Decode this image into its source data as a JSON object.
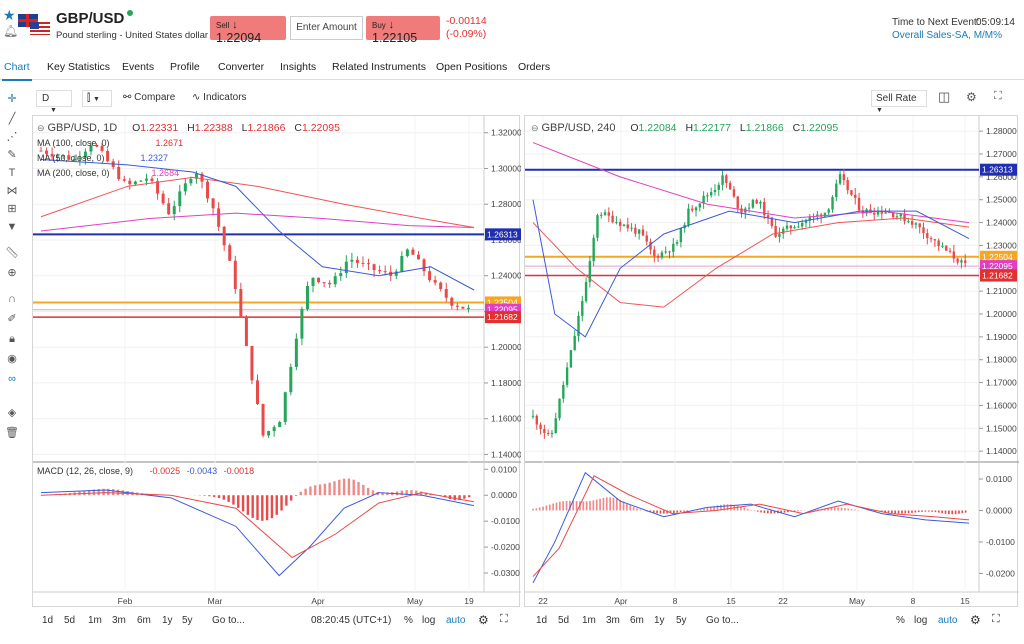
{
  "header": {
    "symbol": "GBP/USD",
    "subtitle": "Pound sterling - United States dollar",
    "sell_label": "Sell",
    "sell_price": "1.22094",
    "amount_placeholder": "Enter Amount",
    "buy_label": "Buy",
    "buy_price": "1.22105",
    "change": "-0.00114",
    "change_pct": "(-0.09%)",
    "next_event_label": "Time to Next Event:",
    "next_event_time": "05:09:14",
    "event_name": "Overall Sales-SA, M/M%"
  },
  "tabs": [
    "Chart",
    "Key Statistics",
    "Events",
    "Profile",
    "Converter",
    "Insights",
    "Related Instruments",
    "Open Positions",
    "Orders"
  ],
  "toolbar": {
    "interval": "D",
    "compare": "Compare",
    "indicators": "Indicators",
    "sell_rate": "Sell Rate"
  },
  "left_chart": {
    "title": "GBP/USD, 1D",
    "o": "1.22331",
    "h": "1.22388",
    "l": "1.21866",
    "c": "1.22095",
    "ma100": "MA (100, close, 0)",
    "ma100_val": "1.2671",
    "ma50": "MA (50, close, 0)",
    "ma50_val": "1.2327",
    "ma200": "MA (200, close, 0)",
    "ma200_val": "1.2684",
    "macd_label": "MACD (12, 26, close, 9)",
    "macd_v1": "-0.0025",
    "macd_v2": "-0.0043",
    "macd_v3": "-0.0018",
    "price_ticks": [
      "1.32000",
      "1.30000",
      "1.28000",
      "1.26000",
      "1.24000",
      "1.22000",
      "1.20000",
      "1.18000",
      "1.16000",
      "1.14000"
    ],
    "macd_ticks": [
      "0.0100",
      "0.0000",
      "-0.0100",
      "-0.0200",
      "-0.0300"
    ],
    "x_labels": [
      "Feb",
      "Mar",
      "Apr",
      "May",
      "19"
    ],
    "level_blue": "1.26313",
    "level_orange": "1.22504",
    "level_pink": "1.22095",
    "level_red": "1.21682",
    "timeframes": [
      "1d",
      "5d",
      "1m",
      "3m",
      "6m",
      "1y",
      "5y",
      "Go to..."
    ],
    "clock": "08:20:45 (UTC+1)",
    "pct": "%",
    "log": "log",
    "auto": "auto"
  },
  "right_chart": {
    "title": "GBP/USD, 240",
    "o": "1.22084",
    "h": "1.22177",
    "l": "1.21866",
    "c": "1.22095",
    "price_ticks": [
      "1.28000",
      "1.27000",
      "1.26000",
      "1.25000",
      "1.24000",
      "1.23000",
      "1.22000",
      "1.21000",
      "1.20000",
      "1.19000",
      "1.18000",
      "1.17000",
      "1.16000",
      "1.15000",
      "1.14000"
    ],
    "macd_ticks": [
      "0.0100",
      "0.0000",
      "-0.0100",
      "-0.0200"
    ],
    "x_labels": [
      "22",
      "Apr",
      "8",
      "15",
      "22",
      "May",
      "8",
      "15"
    ],
    "level_blue": "1.26313",
    "level_orange": "1.22504",
    "level_pink": "1.22095",
    "level_red": "1.21682",
    "timeframes": [
      "1d",
      "5d",
      "1m",
      "3m",
      "6m",
      "1y",
      "5y",
      "Go to..."
    ],
    "pct": "%",
    "log": "log",
    "auto": "auto"
  },
  "colors": {
    "accent": "#1a7bb9",
    "up": "#26a65b",
    "down": "#e84a4a",
    "blue_level": "#1f2fb0",
    "orange_level": "#f5a623",
    "red_level": "#e03030",
    "pink": "#e040c0"
  }
}
